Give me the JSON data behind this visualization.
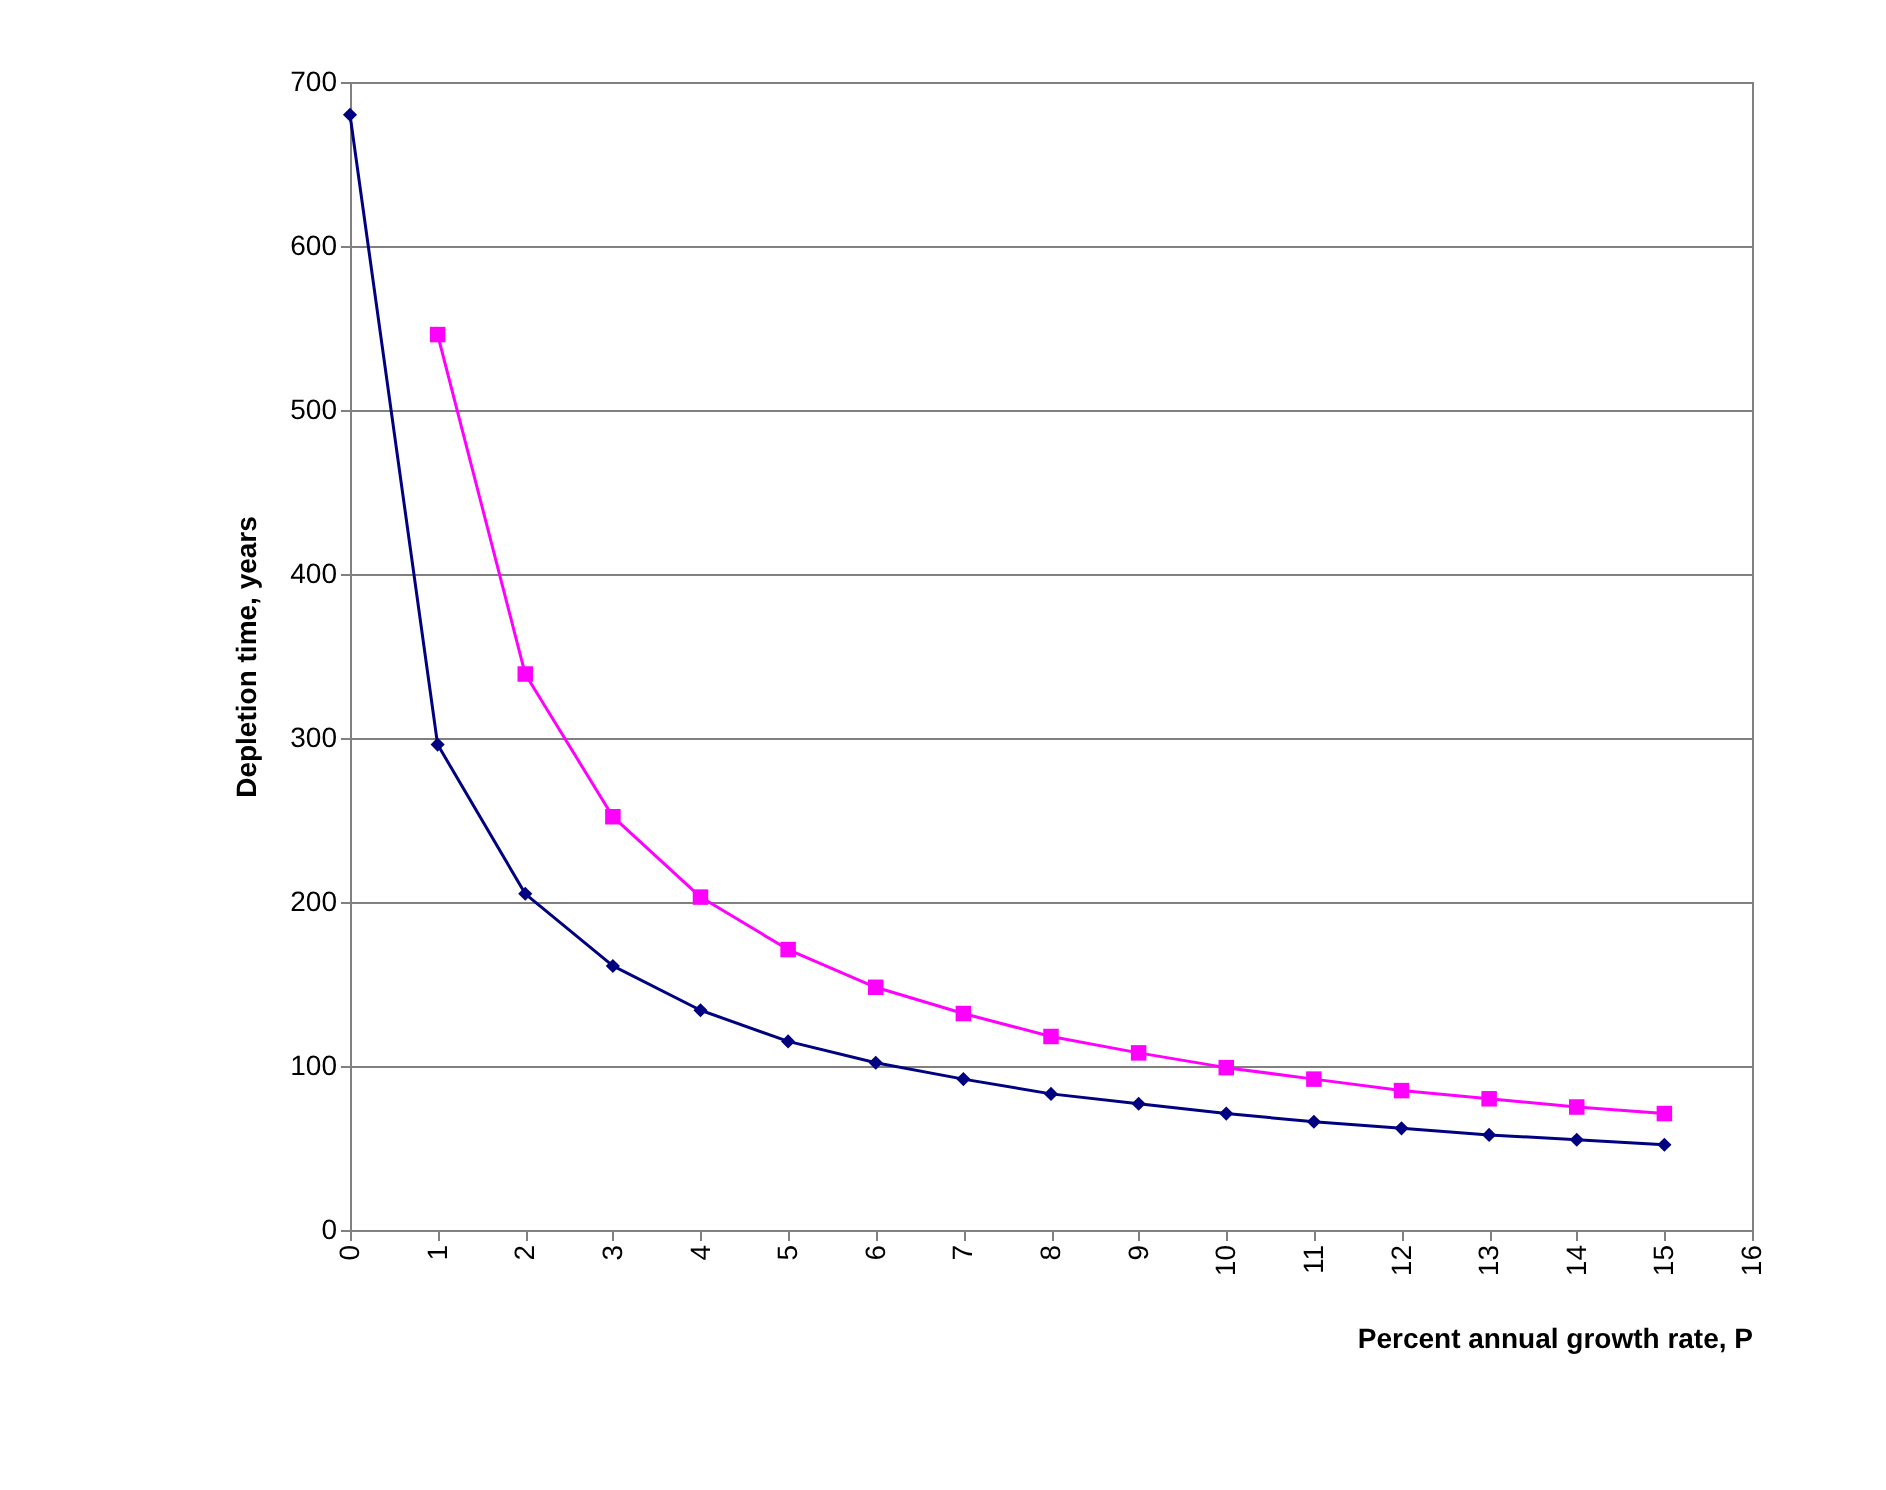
{
  "chart_data": {
    "type": "line",
    "xlabel": "Percent annual growth rate, P",
    "ylabel": "Depletion time, years",
    "x": [
      0,
      1,
      2,
      3,
      4,
      5,
      6,
      7,
      8,
      9,
      10,
      11,
      12,
      13,
      14,
      15
    ],
    "series": [
      {
        "color": "#000080",
        "marker": "diamond",
        "values": [
          680,
          296,
          205,
          161,
          134,
          115,
          102,
          92,
          83,
          77,
          71,
          66,
          62,
          58,
          55,
          52
        ]
      },
      {
        "color": "#ff00ff",
        "marker": "square",
        "values": [
          null,
          546,
          339,
          252,
          203,
          171,
          148,
          132,
          118,
          108,
          99,
          92,
          85,
          80,
          75,
          71
        ]
      }
    ],
    "xlim": [
      0,
      16
    ],
    "xticks": [
      0,
      1,
      2,
      3,
      4,
      5,
      6,
      7,
      8,
      9,
      10,
      11,
      12,
      13,
      14,
      15,
      16
    ],
    "ylim": [
      0,
      700
    ],
    "yticks": [
      0,
      100,
      200,
      300,
      400,
      500,
      600,
      700
    ],
    "grid": "y",
    "line_style": "solid"
  }
}
